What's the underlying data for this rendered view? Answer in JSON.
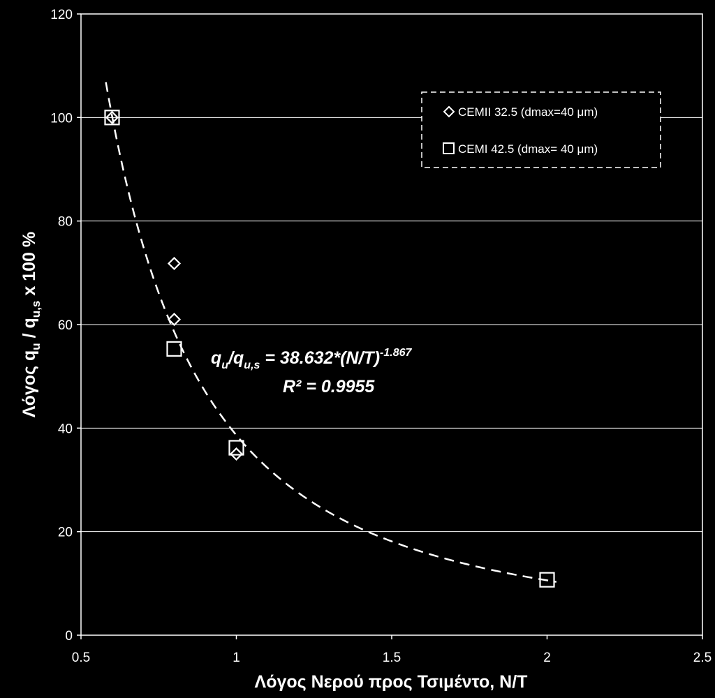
{
  "chart_data": {
    "type": "scatter",
    "xlabel": "Λόγος  Νερού  προς  Τσιμέντο, Ν/Τ",
    "ylabel": {
      "prefix": "Λόγος",
      "q": "q",
      "u": "u",
      "slash": " / ",
      "us": "u,s",
      "suffix": " x 100 %"
    },
    "xlim": [
      0.5,
      2.5
    ],
    "ylim": [
      0,
      120
    ],
    "x_ticks": [
      "0.5",
      "1",
      "1.5",
      "2",
      "2.5"
    ],
    "y_ticks": [
      "0",
      "20",
      "40",
      "60",
      "80",
      "100",
      "120"
    ],
    "grid": "horizontal",
    "legend_position": "top-right",
    "series": [
      {
        "name": "CEMII 32.5 (dmax=40 μm)",
        "marker": "diamond",
        "points": [
          {
            "x": 0.6,
            "y": 100
          },
          {
            "x": 0.8,
            "y": 71.8
          },
          {
            "x": 0.8,
            "y": 61
          },
          {
            "x": 1.0,
            "y": 35
          }
        ]
      },
      {
        "name": "CEMI 42.5 (dmax= 40 μm)",
        "marker": "square",
        "points": [
          {
            "x": 0.6,
            "y": 100
          },
          {
            "x": 0.8,
            "y": 55.3
          },
          {
            "x": 1.0,
            "y": 36.2
          },
          {
            "x": 2.0,
            "y": 10.7
          }
        ]
      }
    ],
    "trendline": {
      "type": "power",
      "a": 38.632,
      "b": -1.867,
      "x_range": [
        0.58,
        2.03
      ],
      "equation": {
        "q": "q",
        "u": "u",
        "slash": "/",
        "us": "u,s",
        "rhs": " = 38.632*(N/T)",
        "exponent": "-1.867"
      },
      "r2_label": "R² = 0.9955"
    }
  }
}
